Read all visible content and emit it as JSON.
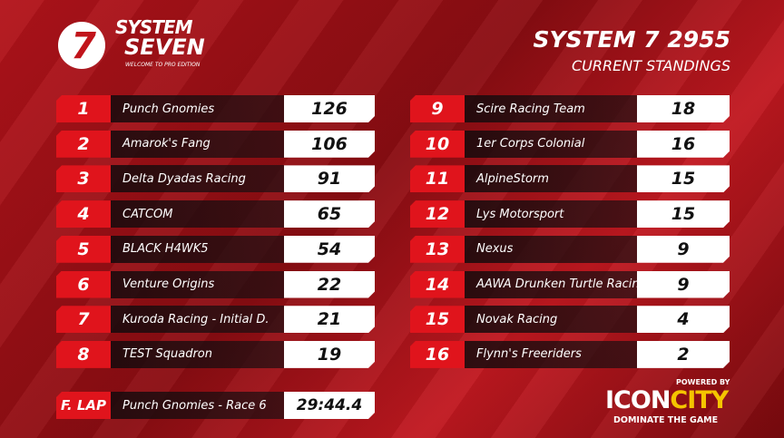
{
  "logo": {
    "mark": "7",
    "line1": "SYSTEM",
    "line2": "SEVEN",
    "tagline": "WELCOME TO PRO EDITION"
  },
  "header": {
    "title": "SYSTEM 7 2955",
    "subtitle": "CURRENT STANDINGS"
  },
  "standings": [
    {
      "position": 1,
      "team": "Punch Gnomies",
      "points": 126
    },
    {
      "position": 2,
      "team": "Amarok's Fang",
      "points": 106
    },
    {
      "position": 3,
      "team": "Delta Dyadas Racing",
      "points": 91
    },
    {
      "position": 4,
      "team": "CATCOM",
      "points": 65
    },
    {
      "position": 5,
      "team": "BLACK H4WK5",
      "points": 54
    },
    {
      "position": 6,
      "team": "Venture Origins",
      "points": 22
    },
    {
      "position": 7,
      "team": "Kuroda Racing - Initial D.",
      "points": 21
    },
    {
      "position": 8,
      "team": "TEST Squadron",
      "points": 19
    },
    {
      "position": 9,
      "team": "Scire Racing Team",
      "points": 18
    },
    {
      "position": 10,
      "team": "1er Corps Colonial",
      "points": 16
    },
    {
      "position": 11,
      "team": "AlpineStorm",
      "points": 15
    },
    {
      "position": 12,
      "team": "Lys Motorsport",
      "points": 15
    },
    {
      "position": 13,
      "team": "Nexus",
      "points": 9
    },
    {
      "position": 14,
      "team": "AAWA Drunken Turtle Racing",
      "points": 9
    },
    {
      "position": 15,
      "team": "Novak Racing",
      "points": 4
    },
    {
      "position": 16,
      "team": "Flynn's Freeriders",
      "points": 2
    }
  ],
  "fastest_lap": {
    "label": "F. LAP",
    "detail": "Punch Gnomies - Race 6",
    "time": "29:44.4"
  },
  "sponsor": {
    "powered": "POWERED BY",
    "name_a": "ICON",
    "name_b": "CITY",
    "slogan": "DOMINATE THE GAME"
  }
}
